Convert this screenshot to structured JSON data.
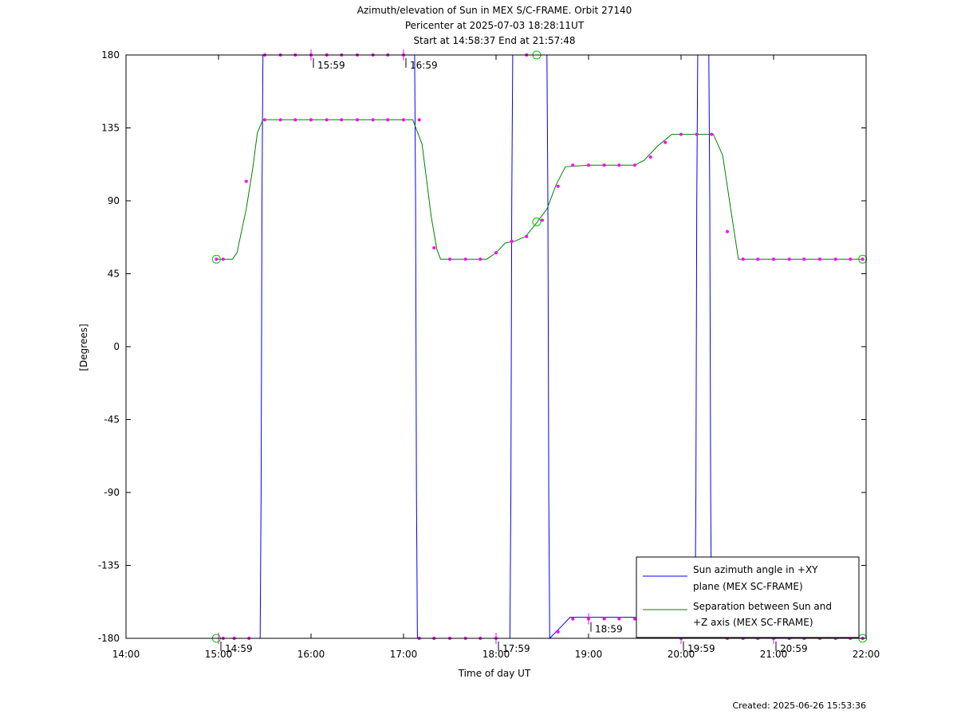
{
  "header": {
    "title_line1": "Azimuth/elevation of Sun in MEX S/C-FRAME.  Orbit 27140",
    "title_line2": "Pericenter at 2025-07-03 18:28:11UT",
    "title_line3": "Start at 14:58:37 End at 21:57:48"
  },
  "footer": {
    "created": "Created: 2025-06-26 15:53:36"
  },
  "colors": {
    "azimuth": "#0000ff",
    "separation": "#008000",
    "marker": "#ff00ff",
    "circle": "#00cc00"
  },
  "chart_data": {
    "type": "line",
    "xlabel": "Time of day UT",
    "ylabel": "[Degrees]",
    "xlim": [
      14.0,
      22.0
    ],
    "ylim": [
      -180,
      180
    ],
    "x_ticks": [
      {
        "v": 14,
        "label": "14:00"
      },
      {
        "v": 15,
        "label": "15:00"
      },
      {
        "v": 16,
        "label": "16:00"
      },
      {
        "v": 17,
        "label": "17:00"
      },
      {
        "v": 18,
        "label": "18:00"
      },
      {
        "v": 19,
        "label": "19:00"
      },
      {
        "v": 20,
        "label": "20:00"
      },
      {
        "v": 21,
        "label": "21:00"
      },
      {
        "v": 22,
        "label": "22:00"
      }
    ],
    "y_ticks": [
      {
        "v": 180,
        "label": "180"
      },
      {
        "v": 135,
        "label": "135"
      },
      {
        "v": 90,
        "label": "90"
      },
      {
        "v": 45,
        "label": "45"
      },
      {
        "v": 0,
        "label": "0"
      },
      {
        "v": -45,
        "label": "-45"
      },
      {
        "v": -90,
        "label": "-90"
      },
      {
        "v": -135,
        "label": "-135"
      },
      {
        "v": -180,
        "label": "-180"
      }
    ],
    "legend": {
      "placement": "bottom-right",
      "entries": [
        {
          "line1": "Sun azimuth angle in +XY",
          "line2": "plane (MEX SC-FRAME)"
        },
        {
          "line1": "Separation between Sun and",
          "line2": "+Z axis (MEX SC-FRAME)"
        }
      ]
    },
    "series": [
      {
        "name": "Sun azimuth angle in +XY plane (MEX SC-FRAME)",
        "color": "#0000ff",
        "points": [
          [
            14.977,
            -180
          ],
          [
            15.45,
            -180
          ],
          [
            15.46,
            -90
          ],
          [
            15.47,
            90
          ],
          [
            15.48,
            180
          ],
          [
            17.12,
            180
          ],
          [
            17.13,
            90
          ],
          [
            17.14,
            -90
          ],
          [
            17.15,
            -180
          ],
          [
            18.15,
            -180
          ],
          [
            18.16,
            -90
          ],
          [
            18.17,
            90
          ],
          [
            18.18,
            180
          ],
          [
            18.55,
            180
          ],
          [
            18.56,
            90
          ],
          [
            18.57,
            -90
          ],
          [
            18.58,
            -180
          ],
          [
            18.7,
            -173
          ],
          [
            18.8,
            -167
          ],
          [
            18.9,
            -167
          ],
          [
            19.5,
            -167
          ],
          [
            19.7,
            -170
          ],
          [
            19.85,
            -176
          ],
          [
            20.0,
            -180
          ],
          [
            20.15,
            -180
          ],
          [
            20.16,
            -90
          ],
          [
            20.17,
            90
          ],
          [
            20.18,
            180
          ],
          [
            20.3,
            180
          ],
          [
            20.31,
            90
          ],
          [
            20.32,
            -90
          ],
          [
            20.33,
            -180
          ],
          [
            21.963,
            -180
          ]
        ]
      },
      {
        "name": "Separation between Sun and +Z axis (MEX SC-FRAME)",
        "color": "#008000",
        "points": [
          [
            14.977,
            54
          ],
          [
            15.15,
            54
          ],
          [
            15.2,
            58
          ],
          [
            15.3,
            85
          ],
          [
            15.37,
            110
          ],
          [
            15.42,
            132
          ],
          [
            15.48,
            140
          ],
          [
            17.1,
            140
          ],
          [
            17.2,
            125
          ],
          [
            17.3,
            80
          ],
          [
            17.36,
            60
          ],
          [
            17.4,
            54
          ],
          [
            17.9,
            54
          ],
          [
            18.0,
            58
          ],
          [
            18.1,
            64
          ],
          [
            18.2,
            65
          ],
          [
            18.32,
            68
          ],
          [
            18.42,
            75
          ],
          [
            18.55,
            85
          ],
          [
            18.65,
            100
          ],
          [
            18.75,
            111
          ],
          [
            19.0,
            112
          ],
          [
            19.5,
            112
          ],
          [
            19.6,
            115
          ],
          [
            19.75,
            124
          ],
          [
            19.9,
            131
          ],
          [
            20.0,
            131
          ],
          [
            20.35,
            131
          ],
          [
            20.45,
            118
          ],
          [
            20.55,
            80
          ],
          [
            20.62,
            54
          ],
          [
            21.963,
            54
          ]
        ]
      }
    ],
    "markers": [
      [
        15.05,
        54
      ],
      [
        15.3,
        102
      ],
      [
        15.5,
        140
      ],
      [
        15.67,
        140
      ],
      [
        15.83,
        140
      ],
      [
        16.0,
        140
      ],
      [
        16.17,
        140
      ],
      [
        16.33,
        140
      ],
      [
        16.5,
        140
      ],
      [
        16.67,
        140
      ],
      [
        16.83,
        140
      ],
      [
        17.0,
        140
      ],
      [
        17.17,
        140
      ],
      [
        17.33,
        61
      ],
      [
        17.5,
        54
      ],
      [
        17.67,
        54
      ],
      [
        17.83,
        54
      ],
      [
        18.0,
        58
      ],
      [
        18.17,
        65
      ],
      [
        18.33,
        68
      ],
      [
        18.5,
        78
      ],
      [
        18.67,
        99
      ],
      [
        18.83,
        112
      ],
      [
        19.0,
        112
      ],
      [
        19.17,
        112
      ],
      [
        19.33,
        112
      ],
      [
        19.5,
        112
      ],
      [
        19.67,
        117
      ],
      [
        19.83,
        126
      ],
      [
        20.0,
        131
      ],
      [
        20.17,
        131
      ],
      [
        20.33,
        131
      ],
      [
        20.5,
        71
      ],
      [
        20.67,
        54
      ],
      [
        20.83,
        54
      ],
      [
        21.0,
        54
      ],
      [
        21.17,
        54
      ],
      [
        21.33,
        54
      ],
      [
        21.5,
        54
      ],
      [
        21.67,
        54
      ],
      [
        21.83,
        54
      ],
      [
        15.5,
        180
      ],
      [
        15.67,
        180
      ],
      [
        15.83,
        180
      ],
      [
        16.0,
        180
      ],
      [
        16.17,
        180
      ],
      [
        16.33,
        180
      ],
      [
        16.5,
        180
      ],
      [
        16.67,
        180
      ],
      [
        16.83,
        180
      ],
      [
        17.0,
        180
      ],
      [
        18.33,
        180
      ],
      [
        15.05,
        -180
      ],
      [
        15.17,
        -180
      ],
      [
        15.33,
        -180
      ],
      [
        17.17,
        -180
      ],
      [
        17.33,
        -180
      ],
      [
        17.5,
        -180
      ],
      [
        17.67,
        -180
      ],
      [
        17.83,
        -180
      ],
      [
        18.0,
        -180
      ],
      [
        18.67,
        -176
      ],
      [
        18.83,
        -168
      ],
      [
        19.0,
        -168
      ],
      [
        19.17,
        -168
      ],
      [
        19.33,
        -168
      ],
      [
        19.5,
        -168
      ],
      [
        19.83,
        -176
      ],
      [
        20.0,
        -180
      ],
      [
        20.5,
        -180
      ],
      [
        20.67,
        -180
      ],
      [
        20.83,
        -180
      ],
      [
        21.0,
        -180
      ],
      [
        21.17,
        -180
      ],
      [
        21.33,
        -180
      ],
      [
        21.5,
        -180
      ],
      [
        21.67,
        -180
      ],
      [
        21.83,
        -180
      ],
      [
        21.963,
        -180
      ],
      [
        14.977,
        54
      ],
      [
        21.963,
        54
      ]
    ],
    "circles": [
      [
        14.977,
        54
      ],
      [
        14.977,
        -180
      ],
      [
        18.44,
        180
      ],
      [
        18.44,
        77
      ],
      [
        21.963,
        54
      ],
      [
        21.963,
        -180
      ]
    ],
    "hour_ticks": [
      {
        "x": 15.0,
        "y": -180,
        "label": "14:59"
      },
      {
        "x": 16.0,
        "y": 180,
        "label": "15:59"
      },
      {
        "x": 17.0,
        "y": 180,
        "label": "16:59"
      },
      {
        "x": 18.0,
        "y": -180,
        "label": "17:59"
      },
      {
        "x": 19.0,
        "y": -168,
        "label": "18:59"
      },
      {
        "x": 20.0,
        "y": -180,
        "label": "19:59"
      },
      {
        "x": 21.0,
        "y": -180,
        "label": "20:59"
      }
    ]
  }
}
